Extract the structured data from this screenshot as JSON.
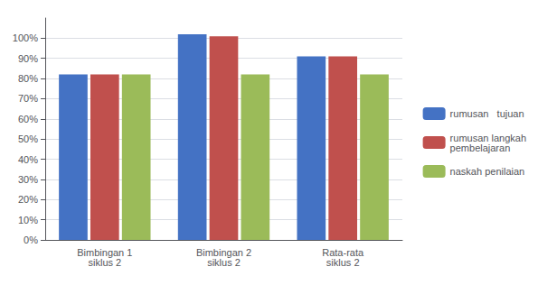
{
  "chart_data": {
    "type": "bar",
    "categories": [
      "Bimbingan 1\nsiklus 2",
      "Bimbingan 2\nsiklus 2",
      "Rata-rata\nsiklus 2"
    ],
    "series": [
      {
        "name": "rumusan   tujuan",
        "color": "#4472C4",
        "values": [
          0.82,
          1.02,
          0.91
        ]
      },
      {
        "name": "rumusan langkah\npembelajaran",
        "color": "#C0504D",
        "values": [
          0.82,
          1.01,
          0.91
        ]
      },
      {
        "name": "naskah penilaian",
        "color": "#9BBB59",
        "values": [
          0.82,
          0.82,
          0.82
        ]
      }
    ],
    "ylim": [
      0,
      1.1
    ],
    "yticks": [
      {
        "value": 0.0,
        "label": "0%"
      },
      {
        "value": 0.1,
        "label": "10%"
      },
      {
        "value": 0.2,
        "label": "20%"
      },
      {
        "value": 0.3,
        "label": "30%"
      },
      {
        "value": 0.4,
        "label": "40%"
      },
      {
        "value": 0.5,
        "label": "50%"
      },
      {
        "value": 0.6,
        "label": "60%"
      },
      {
        "value": 0.7,
        "label": "70%"
      },
      {
        "value": 0.8,
        "label": "80%"
      },
      {
        "value": 0.9,
        "label": "90%"
      },
      {
        "value": 1.0,
        "label": "100%"
      }
    ],
    "grid": true,
    "legend": "right"
  }
}
